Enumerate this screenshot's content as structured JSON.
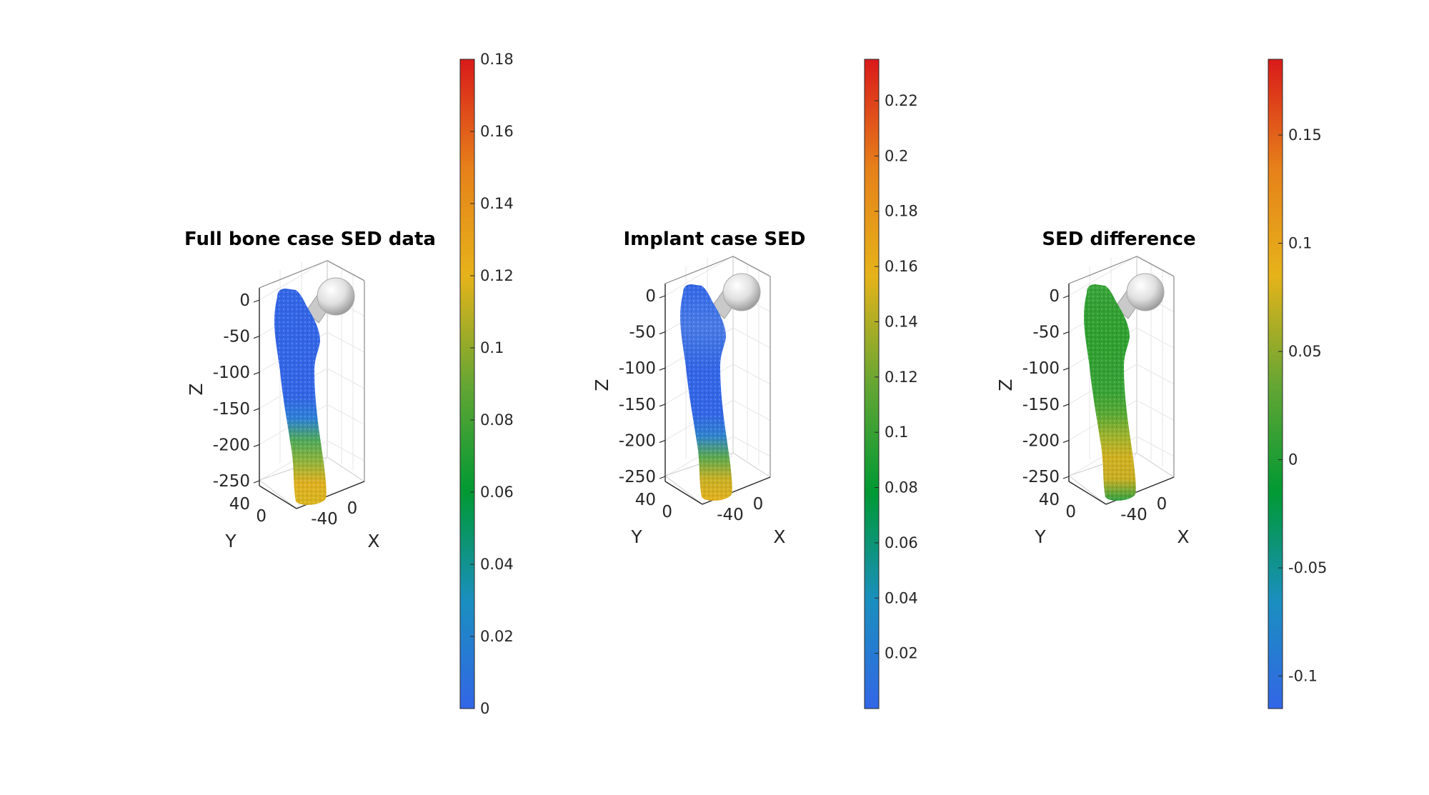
{
  "colors": {
    "colormap": [
      "#3366e6",
      "#1a8fbf",
      "#009933",
      "#66a633",
      "#e6b31a",
      "#e6801a",
      "#d91a1a"
    ],
    "implant_head": "#e0e0e0",
    "axis_line": "#262626",
    "grid": "#e6e6e6"
  },
  "chart_data": [
    {
      "type": "3d-surface",
      "title": "Full bone case SED data",
      "zticks": [
        "0",
        "-50",
        "-100",
        "-150",
        "-200",
        "-250"
      ],
      "yticks": [
        "40",
        "0"
      ],
      "xticks": [
        "-40",
        "0"
      ],
      "xlabel": "X",
      "ylabel": "Y",
      "zlabel": "Z",
      "zlim": [
        -260,
        10
      ],
      "surface_color_profile": [
        "#3366e6",
        "#3366e6",
        "#3366e6",
        "#3366e6",
        "#3366e6",
        "#3366e6",
        "#2d7fd6",
        "#4ea85a",
        "#8fb33a",
        "#e0b020",
        "#d8b41e"
      ],
      "colorbar": {
        "clim": [
          0,
          0.18
        ],
        "ticks": [
          "0",
          "0.02",
          "0.04",
          "0.06",
          "0.08",
          "0.1",
          "0.12",
          "0.14",
          "0.16",
          "0.18"
        ],
        "tick_values": [
          0,
          0.02,
          0.04,
          0.06,
          0.08,
          0.1,
          0.12,
          0.14,
          0.16,
          0.18
        ]
      }
    },
    {
      "type": "3d-surface",
      "title": "Implant case SED",
      "zticks": [
        "0",
        "-50",
        "-100",
        "-150",
        "-200",
        "-250"
      ],
      "yticks": [
        "40",
        "0"
      ],
      "xticks": [
        "-40",
        "0"
      ],
      "xlabel": "X",
      "ylabel": "Y",
      "zlabel": "Z",
      "zlim": [
        -260,
        10
      ],
      "surface_color_profile": [
        "#3366e6",
        "#3f73e8",
        "#4a7ae6",
        "#3c70e4",
        "#3366e6",
        "#3366e6",
        "#3366e6",
        "#2f82cf",
        "#5aa84e",
        "#c8b024",
        "#e2b01c"
      ],
      "colorbar": {
        "clim": [
          0,
          0.235
        ],
        "ticks": [
          "0.02",
          "0.04",
          "0.06",
          "0.08",
          "0.1",
          "0.12",
          "0.14",
          "0.16",
          "0.18",
          "0.2",
          "0.22"
        ],
        "tick_values": [
          0.02,
          0.04,
          0.06,
          0.08,
          0.1,
          0.12,
          0.14,
          0.16,
          0.18,
          0.2,
          0.22
        ]
      }
    },
    {
      "type": "3d-surface",
      "title": "SED difference",
      "zticks": [
        "0",
        "-50",
        "-100",
        "-150",
        "-200",
        "-250"
      ],
      "yticks": [
        "40",
        "0"
      ],
      "xticks": [
        "-40",
        "0"
      ],
      "xlabel": "X",
      "ylabel": "Y",
      "zlabel": "Z",
      "zlim": [
        -260,
        10
      ],
      "surface_color_profile": [
        "#3aa63a",
        "#33a033",
        "#30a030",
        "#30a030",
        "#33a033",
        "#38a336",
        "#58a834",
        "#9cb22c",
        "#d0b020",
        "#c8ae22",
        "#2ea040"
      ],
      "colorbar": {
        "clim": [
          -0.115,
          0.185
        ],
        "ticks": [
          "-0.1",
          "-0.05",
          "0",
          "0.05",
          "0.1",
          "0.15"
        ],
        "tick_values": [
          -0.1,
          -0.05,
          0,
          0.05,
          0.1,
          0.15
        ]
      }
    }
  ]
}
